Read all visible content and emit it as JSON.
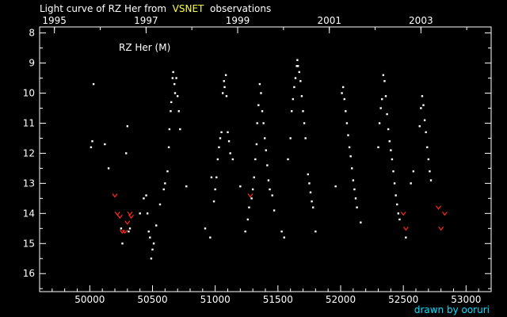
{
  "title": {
    "prefix": "Light curve of RZ Her from",
    "source": "VSNET",
    "suffix": "observations"
  },
  "credit": "drawn by ooruri",
  "colors": {
    "background": "#000000",
    "points": "#ffffff",
    "upper_limits": "#ff2a1a",
    "source_highlight": "#ffff44",
    "credit": "#00e0ff"
  },
  "chart_data": {
    "type": "scatter",
    "legend_label": "RZ Her (M)",
    "x_label": "",
    "y_label": "",
    "xlim": [
      49600,
      53200
    ],
    "ylim": [
      16.6,
      7.8
    ],
    "x_ticks": [
      50000,
      50500,
      51000,
      51500,
      52000,
      52500,
      53000
    ],
    "y_ticks": [
      8,
      9,
      10,
      11,
      12,
      13,
      14,
      15,
      16
    ],
    "top_axis_ticks": [
      {
        "label": "1995",
        "jd": 49718
      },
      {
        "label": "1997",
        "jd": 50449
      },
      {
        "label": "1999",
        "jd": 51179
      },
      {
        "label": "2001",
        "jd": 51910
      },
      {
        "label": "2003",
        "jd": 52640
      }
    ],
    "grid": false,
    "series": [
      {
        "name": "observations",
        "marker": "dot",
        "points": [
          [
            50010,
            11.8
          ],
          [
            50020,
            11.6
          ],
          [
            50030,
            9.7
          ],
          [
            50120,
            11.7
          ],
          [
            50150,
            12.5
          ],
          [
            50250,
            14.5
          ],
          [
            50260,
            15.0
          ],
          [
            50290,
            12.0
          ],
          [
            50300,
            11.1
          ],
          [
            50310,
            14.6
          ],
          [
            50320,
            14.5
          ],
          [
            50400,
            14.0
          ],
          [
            50430,
            13.5
          ],
          [
            50450,
            13.4
          ],
          [
            50460,
            14.0
          ],
          [
            50470,
            14.6
          ],
          [
            50480,
            14.8
          ],
          [
            50490,
            15.5
          ],
          [
            50500,
            15.2
          ],
          [
            50510,
            15.0
          ],
          [
            50530,
            14.4
          ],
          [
            50560,
            13.7
          ],
          [
            50590,
            13.2
          ],
          [
            50600,
            13.0
          ],
          [
            50620,
            12.6
          ],
          [
            50630,
            11.8
          ],
          [
            50635,
            11.2
          ],
          [
            50645,
            10.6
          ],
          [
            50650,
            10.3
          ],
          [
            50660,
            9.5
          ],
          [
            50665,
            9.3
          ],
          [
            50675,
            9.7
          ],
          [
            50680,
            10.0
          ],
          [
            50690,
            9.5
          ],
          [
            50700,
            10.1
          ],
          [
            50710,
            10.6
          ],
          [
            50720,
            11.2
          ],
          [
            50770,
            13.1
          ],
          [
            50920,
            14.5
          ],
          [
            50960,
            14.8
          ],
          [
            50970,
            12.8
          ],
          [
            50990,
            13.6
          ],
          [
            51000,
            13.2
          ],
          [
            51010,
            12.8
          ],
          [
            51020,
            12.2
          ],
          [
            51030,
            11.8
          ],
          [
            51040,
            11.5
          ],
          [
            51050,
            11.3
          ],
          [
            51060,
            10.0
          ],
          [
            51070,
            9.6
          ],
          [
            51075,
            9.8
          ],
          [
            51085,
            9.4
          ],
          [
            51090,
            10.1
          ],
          [
            51100,
            11.3
          ],
          [
            51110,
            11.6
          ],
          [
            51120,
            12.0
          ],
          [
            51140,
            12.2
          ],
          [
            51200,
            13.1
          ],
          [
            51240,
            14.6
          ],
          [
            51260,
            14.2
          ],
          [
            51270,
            13.8
          ],
          [
            51290,
            13.5
          ],
          [
            51300,
            13.2
          ],
          [
            51310,
            12.8
          ],
          [
            51320,
            12.2
          ],
          [
            51330,
            11.7
          ],
          [
            51335,
            11.0
          ],
          [
            51345,
            10.4
          ],
          [
            51355,
            9.7
          ],
          [
            51365,
            10.0
          ],
          [
            51375,
            10.6
          ],
          [
            51385,
            11.0
          ],
          [
            51395,
            11.5
          ],
          [
            51405,
            11.9
          ],
          [
            51415,
            12.4
          ],
          [
            51425,
            12.9
          ],
          [
            51435,
            13.2
          ],
          [
            51455,
            13.4
          ],
          [
            51470,
            13.9
          ],
          [
            51530,
            14.6
          ],
          [
            51550,
            14.8
          ],
          [
            51580,
            12.2
          ],
          [
            51600,
            11.5
          ],
          [
            51610,
            10.6
          ],
          [
            51620,
            10.2
          ],
          [
            51630,
            9.8
          ],
          [
            51640,
            9.5
          ],
          [
            51650,
            9.1
          ],
          [
            51655,
            8.9
          ],
          [
            51660,
            9.1
          ],
          [
            51670,
            9.3
          ],
          [
            51680,
            9.6
          ],
          [
            51690,
            10.1
          ],
          [
            51700,
            10.6
          ],
          [
            51710,
            11.0
          ],
          [
            51720,
            11.5
          ],
          [
            51740,
            12.7
          ],
          [
            51750,
            13.0
          ],
          [
            51760,
            13.3
          ],
          [
            51770,
            13.6
          ],
          [
            51780,
            13.8
          ],
          [
            51800,
            14.6
          ],
          [
            51960,
            13.1
          ],
          [
            52010,
            10.0
          ],
          [
            52020,
            9.8
          ],
          [
            52030,
            10.2
          ],
          [
            52040,
            10.6
          ],
          [
            52050,
            11.0
          ],
          [
            52060,
            11.4
          ],
          [
            52070,
            11.8
          ],
          [
            52080,
            12.1
          ],
          [
            52090,
            12.5
          ],
          [
            52100,
            12.9
          ],
          [
            52110,
            13.2
          ],
          [
            52120,
            13.5
          ],
          [
            52130,
            13.8
          ],
          [
            52160,
            14.3
          ],
          [
            52300,
            11.8
          ],
          [
            52310,
            11.0
          ],
          [
            52320,
            10.5
          ],
          [
            52330,
            10.2
          ],
          [
            52340,
            9.4
          ],
          [
            52350,
            9.6
          ],
          [
            52360,
            10.1
          ],
          [
            52370,
            10.7
          ],
          [
            52380,
            11.2
          ],
          [
            52390,
            11.6
          ],
          [
            52400,
            11.9
          ],
          [
            52410,
            12.2
          ],
          [
            52420,
            12.6
          ],
          [
            52430,
            13.0
          ],
          [
            52440,
            13.4
          ],
          [
            52450,
            13.7
          ],
          [
            52460,
            14.0
          ],
          [
            52470,
            14.2
          ],
          [
            52520,
            14.8
          ],
          [
            52560,
            13.0
          ],
          [
            52580,
            12.6
          ],
          [
            52630,
            11.1
          ],
          [
            52640,
            10.5
          ],
          [
            52650,
            10.1
          ],
          [
            52660,
            10.4
          ],
          [
            52670,
            10.9
          ],
          [
            52680,
            11.3
          ],
          [
            52690,
            11.8
          ],
          [
            52700,
            12.2
          ],
          [
            52710,
            12.6
          ],
          [
            52720,
            12.9
          ]
        ]
      },
      {
        "name": "fainter-than",
        "marker": "v",
        "points": [
          [
            50200,
            13.4
          ],
          [
            50220,
            14.0
          ],
          [
            50240,
            14.1
          ],
          [
            50260,
            14.6
          ],
          [
            50280,
            14.6
          ],
          [
            50300,
            14.3
          ],
          [
            50320,
            14.0
          ],
          [
            50330,
            14.1
          ],
          [
            51280,
            13.4
          ],
          [
            52500,
            14.0
          ],
          [
            52520,
            14.5
          ],
          [
            52780,
            13.8
          ],
          [
            52800,
            14.5
          ],
          [
            52830,
            14.0
          ]
        ]
      }
    ]
  }
}
